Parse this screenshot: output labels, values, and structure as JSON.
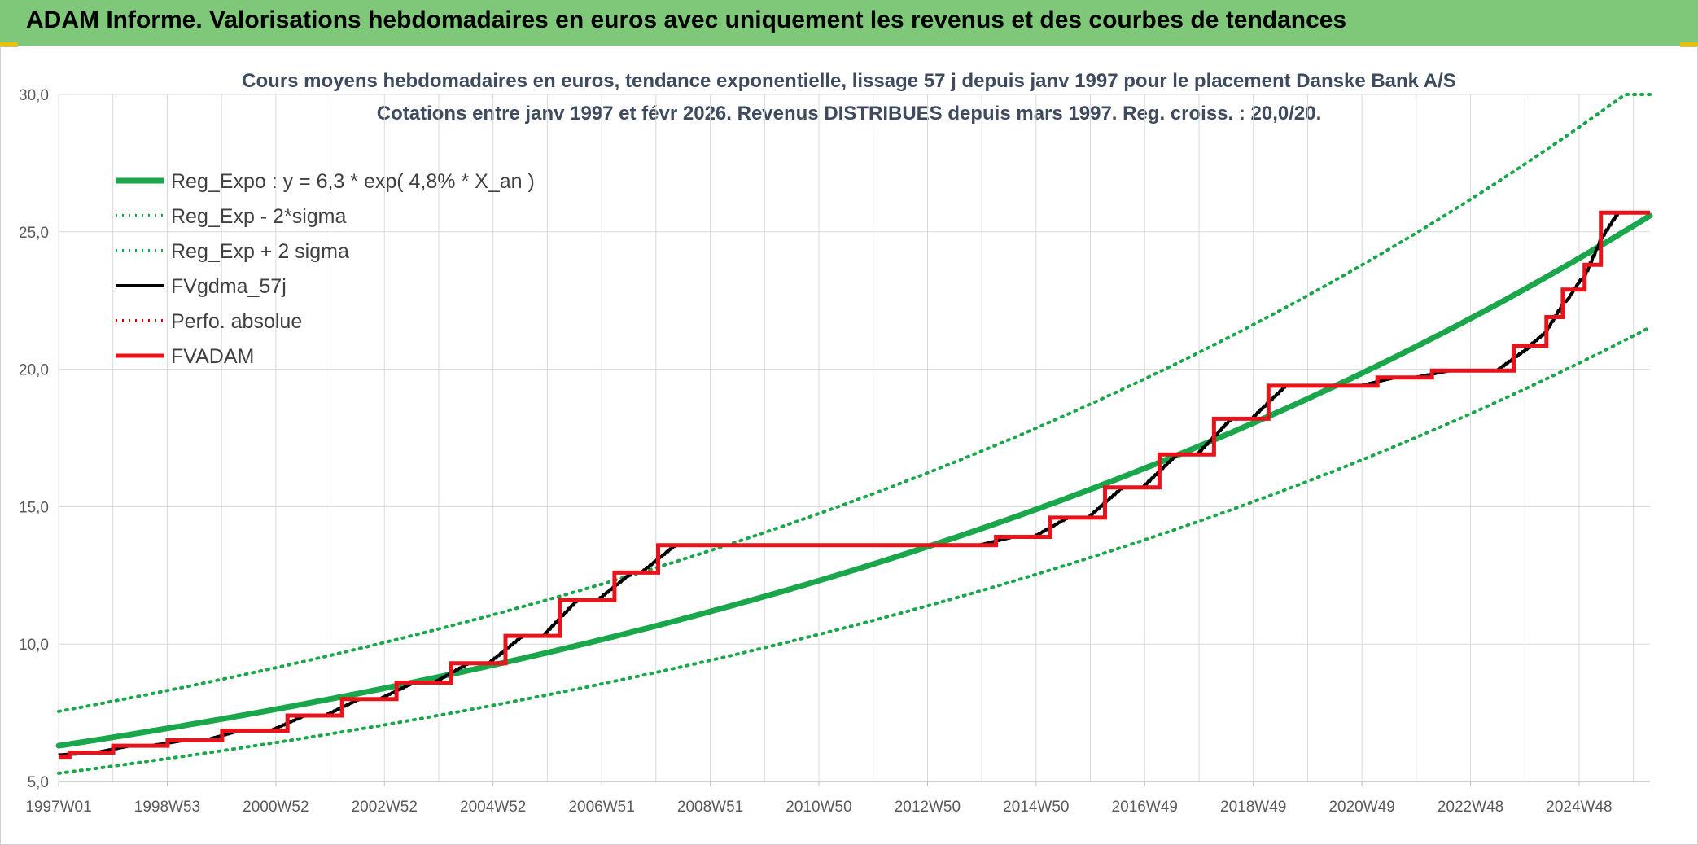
{
  "header": {
    "title": "ADAM Informe. Valorisations hebdomadaires en euros avec uniquement les revenus et des courbes de tendances"
  },
  "chart_data": {
    "type": "line",
    "title_line1": "Cours moyens hebdomadaires en euros, tendance exponentielle, lissage 57 j depuis janv 1997 pour le placement Danske Bank A/S",
    "title_line2": "Cotations entre janv 1997 et févr 2026. Revenus DISTRIBUES depuis mars 1997. Reg. croiss. : 20,0/20.",
    "x_tick_labels": [
      "1997W01",
      "1998W53",
      "2000W52",
      "2002W52",
      "2004W52",
      "2006W51",
      "2008W51",
      "2010W50",
      "2012W50",
      "2014W50",
      "2016W49",
      "2018W49",
      "2020W49",
      "2022W48",
      "2024W48"
    ],
    "x_range": [
      1997.0,
      2026.2
    ],
    "ylim": [
      5,
      30
    ],
    "y_ticks": [
      "5,0",
      "10,0",
      "15,0",
      "20,0",
      "25,0",
      "30,0"
    ],
    "grid": true,
    "legend_position": "top-left",
    "series": [
      {
        "name": "Reg_Expo : y = 6,3 * exp( 4,8% *  X_an )",
        "color": "#1aa64a",
        "style": "solid-thick",
        "model": {
          "type": "exponential",
          "a": 6.3,
          "rate": 0.048,
          "x0": 1997.0
        }
      },
      {
        "name": "Reg_Exp - 2*sigma",
        "color": "#1aa64a",
        "style": "dotted",
        "model": {
          "type": "exponential",
          "a": 5.3,
          "rate": 0.048,
          "x0": 1997.0
        }
      },
      {
        "name": "Reg_Exp + 2 sigma",
        "color": "#1aa64a",
        "style": "dotted",
        "model": {
          "type": "exponential",
          "a": 7.55,
          "rate": 0.048,
          "x0": 1997.0
        }
      },
      {
        "name": "FVgdma_57j",
        "color": "#000000",
        "style": "solid",
        "smoothing_years": 0.3
      },
      {
        "name": "Perfo. absolue",
        "color": "#cc0000",
        "style": "dotted"
      },
      {
        "name": "FVADAM",
        "color": "#e8141c",
        "style": "step-thick",
        "points": [
          [
            1997.0,
            5.9
          ],
          [
            1997.2,
            6.05
          ],
          [
            1998.0,
            6.3
          ],
          [
            1999.0,
            6.5
          ],
          [
            2000.0,
            6.85
          ],
          [
            2001.2,
            7.4
          ],
          [
            2002.2,
            8.0
          ],
          [
            2003.2,
            8.6
          ],
          [
            2004.2,
            9.3
          ],
          [
            2005.2,
            10.3
          ],
          [
            2006.2,
            11.6
          ],
          [
            2007.2,
            12.6
          ],
          [
            2008.0,
            13.6
          ],
          [
            2014.2,
            13.9
          ],
          [
            2015.2,
            14.6
          ],
          [
            2016.2,
            15.7
          ],
          [
            2017.2,
            16.9
          ],
          [
            2018.2,
            18.2
          ],
          [
            2019.2,
            19.4
          ],
          [
            2021.2,
            19.7
          ],
          [
            2022.2,
            19.95
          ],
          [
            2023.7,
            20.85
          ],
          [
            2024.3,
            21.9
          ],
          [
            2024.6,
            22.9
          ],
          [
            2025.0,
            23.8
          ],
          [
            2025.3,
            25.7
          ],
          [
            2026.2,
            25.7
          ]
        ]
      }
    ]
  }
}
